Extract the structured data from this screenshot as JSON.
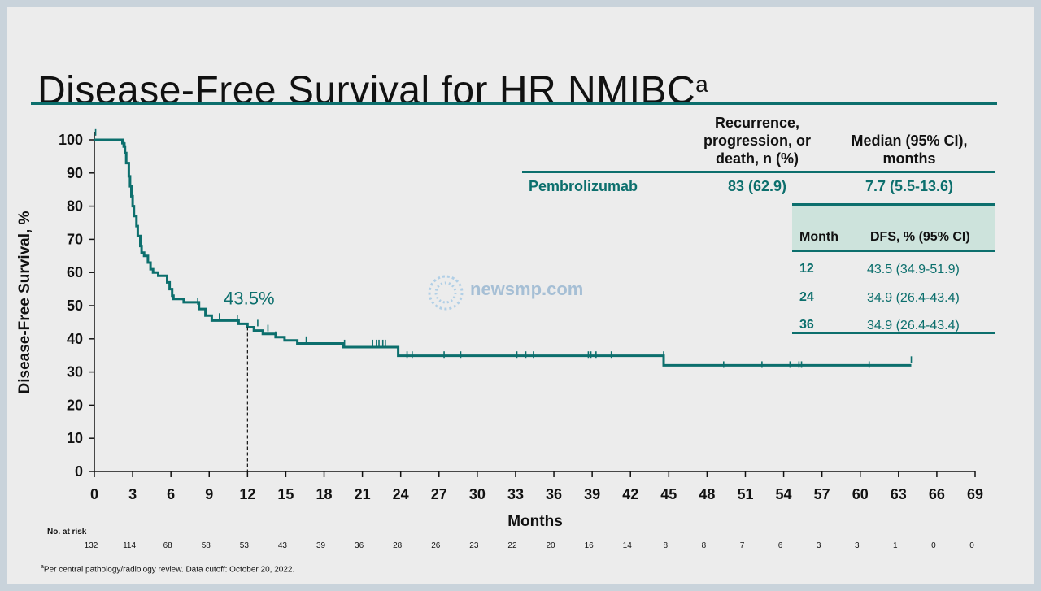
{
  "title": {
    "text": "Disease-Free Survival for HR NMIBC",
    "superscript": "a"
  },
  "summary_table": {
    "header_events": "Recurrence,\nprogression, or\ndeath, n (%)",
    "header_median": "Median (95% CI),\nmonths",
    "arm": "Pembrolizumab",
    "events": "83 (62.9)",
    "median": "7.7 (5.5-13.6)"
  },
  "dfs_table": {
    "header_month": "Month",
    "header_dfs": "DFS, % (95% CI)",
    "rows": [
      {
        "month": "12",
        "dfs": "43.5 (34.9-51.9)"
      },
      {
        "month": "24",
        "dfs": "34.9 (26.4-43.4)"
      },
      {
        "month": "36",
        "dfs": "34.9 (26.4-43.4)"
      }
    ]
  },
  "watermark": {
    "text": "newsmp.com"
  },
  "footnote": {
    "superscript": "a",
    "text": "Per central pathology/radiology review. Data cutoff: October 20, 2022."
  },
  "chart_data": {
    "type": "line",
    "ylabel": "Disease-Free Survival, %",
    "xlabel": "Months",
    "xlim": [
      0,
      69
    ],
    "ylim": [
      0,
      100
    ],
    "xticks": [
      0,
      3,
      6,
      9,
      12,
      15,
      18,
      21,
      24,
      27,
      30,
      33,
      36,
      39,
      42,
      45,
      48,
      51,
      54,
      57,
      60,
      63,
      66,
      69
    ],
    "yticks": [
      0,
      10,
      20,
      30,
      40,
      50,
      60,
      70,
      80,
      90,
      100
    ],
    "grid": false,
    "color": "#0c6f6d",
    "annotation": {
      "text": "43.5%",
      "x": 12,
      "y": 43.5
    },
    "series": [
      {
        "step": [
          [
            0,
            100
          ],
          [
            2.2,
            100
          ],
          [
            2.2,
            99
          ],
          [
            2.3,
            99
          ],
          [
            2.3,
            98
          ],
          [
            2.4,
            98
          ],
          [
            2.4,
            96
          ],
          [
            2.5,
            96
          ],
          [
            2.5,
            93
          ],
          [
            2.7,
            93
          ],
          [
            2.7,
            89
          ],
          [
            2.8,
            89
          ],
          [
            2.8,
            86
          ],
          [
            2.9,
            86
          ],
          [
            2.9,
            83
          ],
          [
            3.0,
            83
          ],
          [
            3.0,
            80
          ],
          [
            3.1,
            80
          ],
          [
            3.1,
            77
          ],
          [
            3.3,
            77
          ],
          [
            3.3,
            74
          ],
          [
            3.4,
            74
          ],
          [
            3.4,
            71
          ],
          [
            3.6,
            71
          ],
          [
            3.6,
            68
          ],
          [
            3.7,
            68
          ],
          [
            3.7,
            66
          ],
          [
            3.9,
            66
          ],
          [
            3.9,
            65
          ],
          [
            4.2,
            65
          ],
          [
            4.2,
            63
          ],
          [
            4.4,
            63
          ],
          [
            4.4,
            61
          ],
          [
            4.6,
            61
          ],
          [
            4.6,
            60
          ],
          [
            5.0,
            60
          ],
          [
            5.0,
            59
          ],
          [
            5.7,
            59
          ],
          [
            5.7,
            57
          ],
          [
            5.9,
            57
          ],
          [
            5.9,
            55
          ],
          [
            6.1,
            55
          ],
          [
            6.1,
            53
          ],
          [
            6.2,
            53
          ],
          [
            6.2,
            52
          ],
          [
            7.0,
            52
          ],
          [
            7.0,
            51
          ],
          [
            8.2,
            51
          ],
          [
            8.2,
            49
          ],
          [
            8.7,
            49
          ],
          [
            8.7,
            47
          ],
          [
            9.2,
            47
          ],
          [
            9.2,
            45.5
          ],
          [
            11.3,
            45.5
          ],
          [
            11.3,
            44.5
          ],
          [
            12.0,
            44.5
          ],
          [
            12.0,
            43.5
          ],
          [
            12.5,
            43.5
          ],
          [
            12.5,
            42.5
          ],
          [
            13.2,
            42.5
          ],
          [
            13.2,
            41.5
          ],
          [
            14.2,
            41.5
          ],
          [
            14.2,
            40.5
          ],
          [
            14.9,
            40.5
          ],
          [
            14.9,
            39.5
          ],
          [
            15.9,
            39.5
          ],
          [
            15.9,
            38.6
          ],
          [
            19.5,
            38.6
          ],
          [
            19.5,
            37.5
          ],
          [
            23.8,
            37.5
          ],
          [
            23.8,
            34.9
          ],
          [
            44.6,
            34.9
          ],
          [
            44.6,
            32
          ],
          [
            64,
            32
          ]
        ],
        "censor": [
          [
            0.1,
            102
          ],
          [
            2.4,
            98
          ],
          [
            8.1,
            51
          ],
          [
            9.8,
            46.5
          ],
          [
            11.2,
            46
          ],
          [
            12.8,
            44.5
          ],
          [
            13.6,
            43
          ],
          [
            14.2,
            41
          ],
          [
            16.6,
            39.5
          ],
          [
            19.6,
            38.5
          ],
          [
            21.8,
            38.5
          ],
          [
            22.1,
            38.5
          ],
          [
            22.3,
            38.5
          ],
          [
            22.6,
            38.5
          ],
          [
            22.8,
            38.5
          ],
          [
            24.5,
            35
          ],
          [
            24.9,
            35
          ],
          [
            27.4,
            35
          ],
          [
            28.7,
            35
          ],
          [
            33.1,
            35
          ],
          [
            33.8,
            35
          ],
          [
            34.4,
            35
          ],
          [
            38.7,
            35
          ],
          [
            38.9,
            35
          ],
          [
            39.3,
            35
          ],
          [
            40.5,
            35
          ],
          [
            44.6,
            35
          ],
          [
            49.3,
            32
          ],
          [
            52.3,
            32
          ],
          [
            54.5,
            32
          ],
          [
            55.2,
            32
          ],
          [
            55.4,
            32
          ],
          [
            60.7,
            32
          ],
          [
            64,
            33.5
          ]
        ]
      }
    ],
    "at_risk": {
      "label": "No. at risk",
      "months": [
        0,
        3,
        6,
        9,
        12,
        15,
        18,
        21,
        24,
        27,
        30,
        33,
        36,
        39,
        42,
        45,
        48,
        51,
        54,
        57,
        60,
        63,
        66,
        69
      ],
      "values": [
        132,
        114,
        68,
        58,
        53,
        43,
        39,
        36,
        28,
        26,
        23,
        22,
        20,
        16,
        14,
        8,
        8,
        7,
        6,
        3,
        3,
        1,
        0,
        0
      ]
    }
  }
}
